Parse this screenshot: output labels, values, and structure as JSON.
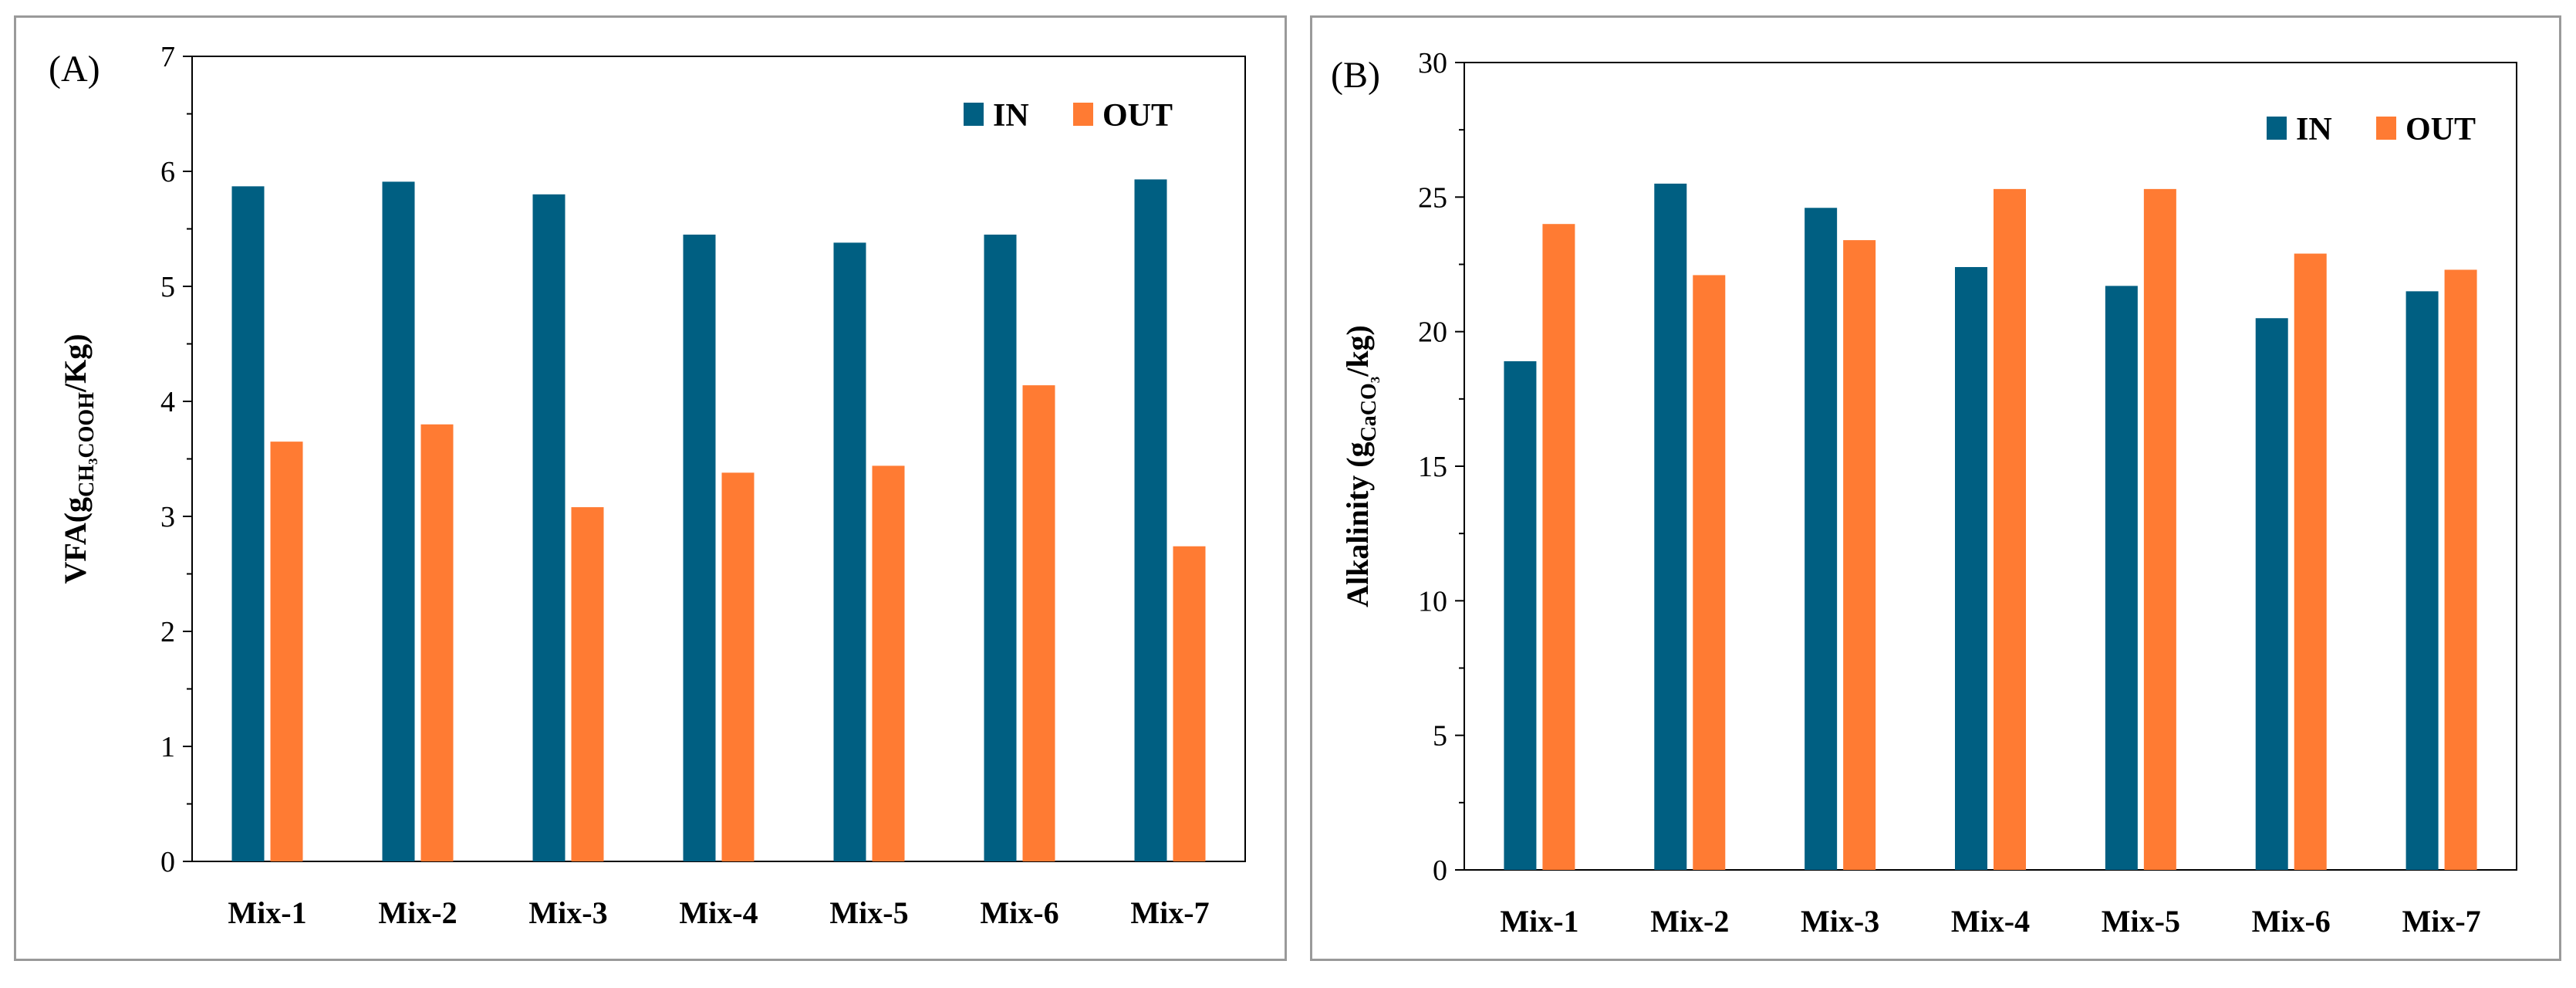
{
  "colors": {
    "in": "#005f82",
    "out": "#ff7b33"
  },
  "chart_data": [
    {
      "type": "bar",
      "panel_label": "(A)",
      "ylabel_main": "VFA(g",
      "ylabel_sub": "CH3COOH",
      "ylabel_tail": "/Kg)",
      "categories": [
        "Mix-1",
        "Mix-2",
        "Mix-3",
        "Mix-4",
        "Mix-5",
        "Mix-6",
        "Mix-7"
      ],
      "series": [
        {
          "name": "IN",
          "values": [
            5.87,
            5.91,
            5.8,
            5.45,
            5.38,
            5.45,
            5.93
          ]
        },
        {
          "name": "OUT",
          "values": [
            3.65,
            3.8,
            3.08,
            3.38,
            3.44,
            4.14,
            2.74
          ]
        }
      ],
      "ylim": [
        0,
        7
      ],
      "yticks": [
        0,
        1,
        2,
        3,
        4,
        5,
        6,
        7
      ],
      "legend_position": "top-right",
      "grid": false
    },
    {
      "type": "bar",
      "panel_label": "(B)",
      "ylabel_main": "Alkalinity (g",
      "ylabel_sub": "CaCO3",
      "ylabel_tail": "/kg)",
      "categories": [
        "Mix-1",
        "Mix-2",
        "Mix-3",
        "Mix-4",
        "Mix-5",
        "Mix-6",
        "Mix-7"
      ],
      "series": [
        {
          "name": "IN",
          "values": [
            18.9,
            25.5,
            24.6,
            22.4,
            21.7,
            20.5,
            21.5
          ]
        },
        {
          "name": "OUT",
          "values": [
            24.0,
            22.1,
            23.4,
            25.3,
            25.3,
            22.9,
            22.3
          ]
        }
      ],
      "ylim": [
        0,
        30
      ],
      "yticks": [
        0,
        5,
        10,
        15,
        20,
        25,
        30
      ],
      "legend_position": "top-right",
      "grid": false
    }
  ]
}
